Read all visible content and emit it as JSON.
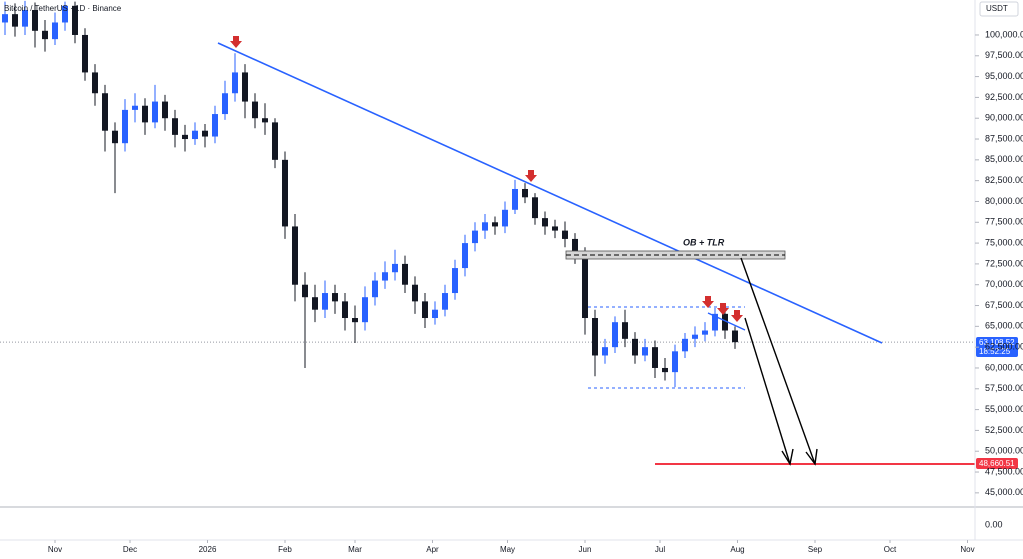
{
  "chart_data": {
    "type": "candlestick",
    "title": "Bitcoin / TetherUS · 1D · Binance",
    "currency": "USDT",
    "annotation": "OB + TLR",
    "last_price_label": "63,108.52",
    "countdown": "18:52:25",
    "target_label": "48,660.51",
    "volume_axis_label": "0.00",
    "x": [
      -20,
      -16,
      -12,
      -8,
      -4,
      0,
      4,
      8,
      12,
      16,
      20,
      24,
      28,
      32,
      36,
      40,
      44,
      48,
      52,
      56,
      60,
      64,
      68,
      72,
      76,
      80,
      84,
      88,
      92,
      96,
      100,
      104,
      108,
      112,
      116,
      120,
      124,
      128,
      132,
      136,
      140,
      144,
      148,
      152,
      156,
      160,
      164,
      168,
      172,
      176,
      180,
      184,
      188,
      192,
      196,
      200,
      204,
      208,
      212,
      216,
      220,
      224,
      228,
      232,
      236,
      240,
      244,
      248,
      252,
      256,
      260,
      264,
      268,
      272
    ],
    "open": [
      101500,
      102500,
      101000,
      103000,
      100500,
      99500,
      101500,
      103500,
      100000,
      95500,
      93000,
      88500,
      87000,
      91000,
      91500,
      89500,
      92000,
      90000,
      88000,
      87500,
      88500,
      87800,
      90500,
      93000,
      95500,
      92000,
      90000,
      89500,
      85000,
      77000,
      70000,
      68500,
      67000,
      69000,
      68000,
      66000,
      65500,
      68500,
      70500,
      71500,
      72500,
      70000,
      68000,
      66000,
      67000,
      69000,
      72000,
      75000,
      76500,
      77500,
      77000,
      79000,
      81500,
      80500,
      78000,
      77000,
      76500,
      75500,
      73500,
      66000,
      61500,
      62500,
      65500,
      63500,
      61500,
      62500,
      60000,
      59500,
      62000,
      63500,
      64000,
      64500,
      66500,
      64500
    ],
    "high": [
      104000,
      103800,
      104100,
      103900,
      101800,
      102700,
      104000,
      104000,
      100800,
      96500,
      94000,
      89500,
      92300,
      93000,
      92400,
      94000,
      92800,
      91000,
      89200,
      89500,
      89300,
      91500,
      94500,
      97800,
      96500,
      93000,
      91800,
      90000,
      86000,
      78500,
      71500,
      70000,
      70500,
      70000,
      69000,
      67500,
      69800,
      71500,
      72800,
      74200,
      73500,
      71000,
      69000,
      68000,
      70000,
      73000,
      76000,
      77500,
      78500,
      78200,
      80000,
      82600,
      82200,
      81000,
      78800,
      77800,
      77600,
      76200,
      74500,
      67000,
      63500,
      66200,
      67000,
      64300,
      63500,
      63300,
      61200,
      62800,
      64200,
      65000,
      65500,
      67200,
      67000,
      65000
    ],
    "low": [
      100000,
      99800,
      100000,
      98500,
      98000,
      98800,
      100500,
      99000,
      94500,
      91500,
      86000,
      81000,
      86000,
      89500,
      88000,
      88800,
      88500,
      86500,
      86000,
      86800,
      86500,
      87000,
      89800,
      92000,
      90000,
      88800,
      88000,
      84000,
      75500,
      68000,
      60000,
      65500,
      66000,
      66500,
      64500,
      63000,
      64500,
      67500,
      69500,
      70500,
      69000,
      66500,
      64800,
      65200,
      66200,
      68200,
      71000,
      74000,
      75500,
      76000,
      76200,
      78500,
      79800,
      77200,
      76000,
      75600,
      74500,
      72500,
      64000,
      59000,
      60500,
      61800,
      62500,
      60500,
      60800,
      58800,
      58500,
      57700,
      61200,
      62500,
      63200,
      63800,
      63500,
      62300
    ],
    "close": [
      102500,
      101000,
      103000,
      100500,
      99500,
      101500,
      103500,
      100000,
      95500,
      93000,
      88500,
      87000,
      91000,
      91500,
      89500,
      92000,
      90000,
      88000,
      87500,
      88500,
      87800,
      90500,
      93000,
      95500,
      92000,
      90000,
      89500,
      85000,
      77000,
      70000,
      68500,
      67000,
      69000,
      68000,
      66000,
      65500,
      68500,
      70500,
      71500,
      72500,
      70000,
      68000,
      66000,
      67000,
      69000,
      72000,
      75000,
      76500,
      77500,
      77000,
      79000,
      81500,
      80500,
      78000,
      77000,
      76500,
      75500,
      73500,
      66000,
      61500,
      62500,
      65500,
      63500,
      61500,
      62500,
      60000,
      59500,
      62000,
      63500,
      64000,
      64500,
      66500,
      64500,
      63100
    ],
    "up_color": "#2962ff",
    "down_color": "#131722",
    "xlim": [
      -22,
      368
    ],
    "xticks": [
      {
        "value": 0,
        "label": "Nov"
      },
      {
        "value": 30,
        "label": "Dec"
      },
      {
        "value": 61,
        "label": "2026"
      },
      {
        "value": 92,
        "label": "Feb"
      },
      {
        "value": 120,
        "label": "Mar"
      },
      {
        "value": 151,
        "label": "Apr"
      },
      {
        "value": 181,
        "label": "May"
      },
      {
        "value": 212,
        "label": "Jun"
      },
      {
        "value": 242,
        "label": "Jul"
      },
      {
        "value": 273,
        "label": "Aug"
      },
      {
        "value": 304,
        "label": "Sep"
      },
      {
        "value": 334,
        "label": "Oct"
      },
      {
        "value": 365,
        "label": "Nov"
      }
    ],
    "ylim": [
      43300,
      104200
    ],
    "yticks": [
      {
        "value": 45000,
        "label": "45,000.00"
      },
      {
        "value": 47500,
        "label": "47,500.00"
      },
      {
        "value": 50000,
        "label": "50,000.00"
      },
      {
        "value": 52500,
        "label": "52,500.00"
      },
      {
        "value": 55000,
        "label": "55,000.00"
      },
      {
        "value": 57500,
        "label": "57,500.00"
      },
      {
        "value": 60000,
        "label": "60,000.00"
      },
      {
        "value": 62500,
        "label": "62,500.00"
      },
      {
        "value": 65000,
        "label": "65,000.00"
      },
      {
        "value": 67500,
        "label": "67,500.00"
      },
      {
        "value": 70000,
        "label": "70,000.00"
      },
      {
        "value": 72500,
        "label": "72,500.00"
      },
      {
        "value": 75000,
        "label": "75,000.00"
      },
      {
        "value": 77500,
        "label": "77,500.00"
      },
      {
        "value": 80000,
        "label": "80,000.00"
      },
      {
        "value": 82500,
        "label": "82,500.00"
      },
      {
        "value": 85000,
        "label": "85,000.00"
      },
      {
        "value": 87500,
        "label": "87,500.00"
      },
      {
        "value": 90000,
        "label": "90,000.00"
      },
      {
        "value": 92500,
        "label": "92,500.00"
      },
      {
        "value": 95000,
        "label": "95,000.00"
      },
      {
        "value": 97500,
        "label": "97,500.00"
      },
      {
        "value": 100000,
        "label": "100,000.00"
      }
    ]
  }
}
